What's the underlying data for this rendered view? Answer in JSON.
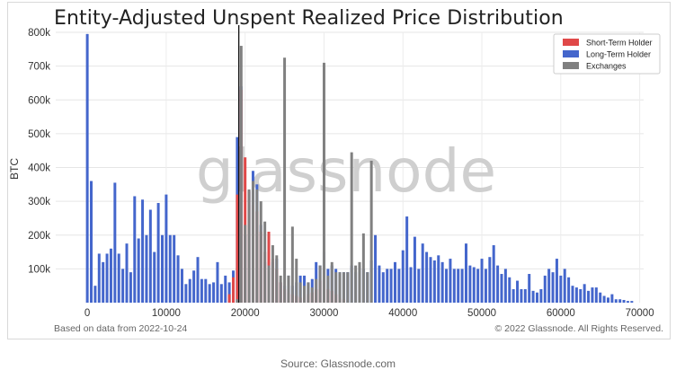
{
  "chart_data": {
    "type": "bar",
    "title": "Entity-Adjusted Unspent Realized Price Distribution",
    "ylabel": "BTC",
    "xlabel": "",
    "xlim": [
      -4000,
      70500
    ],
    "ylim": [
      0,
      800000
    ],
    "xticks": [
      0,
      10000,
      20000,
      30000,
      40000,
      50000,
      60000,
      70000
    ],
    "yticks": [
      100000,
      200000,
      300000,
      400000,
      500000,
      600000,
      700000,
      800000
    ],
    "ytick_labels": [
      "100k",
      "200k",
      "300k",
      "400k",
      "500k",
      "600k",
      "700k",
      "800k"
    ],
    "bin_width": 500,
    "grid": true,
    "legend_position": "top-right",
    "watermark": "glassnode",
    "vline_x": 19200,
    "series": [
      {
        "name": "Long-Term Holder",
        "color": "#4466cc",
        "values": [
          [
            0,
            795000
          ],
          [
            500,
            360000
          ],
          [
            1000,
            50000
          ],
          [
            1500,
            145000
          ],
          [
            2000,
            120000
          ],
          [
            2500,
            145000
          ],
          [
            3000,
            160000
          ],
          [
            3500,
            355000
          ],
          [
            4000,
            145000
          ],
          [
            4500,
            100000
          ],
          [
            5000,
            175000
          ],
          [
            5500,
            90000
          ],
          [
            6000,
            315000
          ],
          [
            6500,
            190000
          ],
          [
            7000,
            305000
          ],
          [
            7500,
            200000
          ],
          [
            8000,
            275000
          ],
          [
            8500,
            150000
          ],
          [
            9000,
            295000
          ],
          [
            9500,
            200000
          ],
          [
            10000,
            320000
          ],
          [
            10500,
            200000
          ],
          [
            11000,
            200000
          ],
          [
            11500,
            140000
          ],
          [
            12000,
            100000
          ],
          [
            12500,
            55000
          ],
          [
            13000,
            70000
          ],
          [
            13500,
            95000
          ],
          [
            14000,
            135000
          ],
          [
            14500,
            70000
          ],
          [
            15000,
            70000
          ],
          [
            15500,
            55000
          ],
          [
            16000,
            60000
          ],
          [
            16500,
            120000
          ],
          [
            17000,
            55000
          ],
          [
            17500,
            80000
          ],
          [
            18000,
            60000
          ],
          [
            18500,
            95000
          ],
          [
            19000,
            490000
          ],
          [
            19500,
            640000
          ],
          [
            20000,
            200000
          ],
          [
            20500,
            330000
          ],
          [
            21000,
            390000
          ],
          [
            21500,
            350000
          ],
          [
            22000,
            230000
          ],
          [
            22500,
            120000
          ],
          [
            23000,
            200000
          ],
          [
            23500,
            120000
          ],
          [
            24000,
            130000
          ],
          [
            24500,
            60000
          ],
          [
            25000,
            50000
          ],
          [
            25500,
            80000
          ],
          [
            26000,
            50000
          ],
          [
            26500,
            60000
          ],
          [
            27000,
            80000
          ],
          [
            27500,
            80000
          ],
          [
            28000,
            60000
          ],
          [
            28500,
            70000
          ],
          [
            29000,
            120000
          ],
          [
            29500,
            110000
          ],
          [
            30000,
            150000
          ],
          [
            30500,
            100000
          ],
          [
            31000,
            110000
          ],
          [
            31500,
            100000
          ],
          [
            32000,
            90000
          ],
          [
            32500,
            90000
          ],
          [
            33000,
            90000
          ],
          [
            33500,
            110000
          ],
          [
            34000,
            90000
          ],
          [
            34500,
            110000
          ],
          [
            35000,
            100000
          ],
          [
            35500,
            90000
          ],
          [
            36000,
            125000
          ],
          [
            36500,
            200000
          ],
          [
            37000,
            110000
          ],
          [
            37500,
            90000
          ],
          [
            38000,
            100000
          ],
          [
            38500,
            100000
          ],
          [
            39000,
            120000
          ],
          [
            39500,
            100000
          ],
          [
            40000,
            155000
          ],
          [
            40500,
            255000
          ],
          [
            41000,
            105000
          ],
          [
            41500,
            195000
          ],
          [
            42000,
            100000
          ],
          [
            42500,
            175000
          ],
          [
            43000,
            150000
          ],
          [
            43500,
            135000
          ],
          [
            44000,
            125000
          ],
          [
            44500,
            140000
          ],
          [
            45000,
            120000
          ],
          [
            45500,
            100000
          ],
          [
            46000,
            130000
          ],
          [
            46500,
            100000
          ],
          [
            47000,
            100000
          ],
          [
            47500,
            100000
          ],
          [
            48000,
            175000
          ],
          [
            48500,
            110000
          ],
          [
            49000,
            105000
          ],
          [
            49500,
            100000
          ],
          [
            50000,
            130000
          ],
          [
            50500,
            100000
          ],
          [
            51000,
            135000
          ],
          [
            51500,
            170000
          ],
          [
            52000,
            110000
          ],
          [
            52500,
            85000
          ],
          [
            53000,
            100000
          ],
          [
            53500,
            75000
          ],
          [
            54000,
            40000
          ],
          [
            54500,
            65000
          ],
          [
            55000,
            40000
          ],
          [
            55500,
            40000
          ],
          [
            56000,
            85000
          ],
          [
            56500,
            35000
          ],
          [
            57000,
            30000
          ],
          [
            57500,
            40000
          ],
          [
            58000,
            80000
          ],
          [
            58500,
            100000
          ],
          [
            59000,
            90000
          ],
          [
            59500,
            130000
          ],
          [
            60000,
            80000
          ],
          [
            60500,
            100000
          ],
          [
            61000,
            75000
          ],
          [
            61500,
            50000
          ],
          [
            62000,
            45000
          ],
          [
            62500,
            40000
          ],
          [
            63000,
            55000
          ],
          [
            63500,
            35000
          ],
          [
            64000,
            45000
          ],
          [
            64500,
            45000
          ],
          [
            65000,
            30000
          ],
          [
            65500,
            20000
          ],
          [
            66000,
            15000
          ],
          [
            66500,
            25000
          ],
          [
            67000,
            10000
          ],
          [
            67500,
            10000
          ],
          [
            68000,
            8000
          ],
          [
            68500,
            5000
          ],
          [
            69000,
            5000
          ]
        ]
      },
      {
        "name": "Short-Term Holder",
        "color": "#e04848",
        "values": [
          [
            18000,
            25000
          ],
          [
            18500,
            75000
          ],
          [
            19000,
            320000
          ],
          [
            19500,
            630000
          ],
          [
            20000,
            430000
          ],
          [
            20500,
            330000
          ],
          [
            21000,
            290000
          ],
          [
            21500,
            270000
          ],
          [
            22000,
            210000
          ],
          [
            22500,
            150000
          ],
          [
            23000,
            210000
          ],
          [
            23500,
            130000
          ],
          [
            24000,
            100000
          ],
          [
            24500,
            60000
          ],
          [
            25000,
            40000
          ],
          [
            25500,
            30000
          ],
          [
            26000,
            25000
          ],
          [
            26500,
            20000
          ],
          [
            27000,
            15000
          ],
          [
            27500,
            20000
          ],
          [
            28000,
            25000
          ],
          [
            28500,
            30000
          ],
          [
            29000,
            40000
          ],
          [
            29500,
            65000
          ],
          [
            30000,
            70000
          ],
          [
            30500,
            40000
          ],
          [
            31000,
            35000
          ],
          [
            31500,
            25000
          ],
          [
            32000,
            15000
          ],
          [
            32500,
            10000
          ]
        ]
      },
      {
        "name": "Exchanges",
        "color": "#808080",
        "values": [
          [
            19000,
            10000
          ],
          [
            19500,
            760000
          ],
          [
            20000,
            230000
          ],
          [
            20500,
            335000
          ],
          [
            21000,
            360000
          ],
          [
            21500,
            335000
          ],
          [
            22000,
            300000
          ],
          [
            22500,
            240000
          ],
          [
            23000,
            110000
          ],
          [
            23500,
            170000
          ],
          [
            24000,
            140000
          ],
          [
            24500,
            80000
          ],
          [
            25000,
            725000
          ],
          [
            25500,
            80000
          ],
          [
            26000,
            225000
          ],
          [
            26500,
            130000
          ],
          [
            27000,
            60000
          ],
          [
            27500,
            50000
          ],
          [
            28000,
            60000
          ],
          [
            28500,
            45000
          ],
          [
            29000,
            70000
          ],
          [
            29500,
            110000
          ],
          [
            30000,
            710000
          ],
          [
            30500,
            80000
          ],
          [
            31000,
            120000
          ],
          [
            31500,
            90000
          ],
          [
            32000,
            90000
          ],
          [
            32500,
            90000
          ],
          [
            33000,
            90000
          ],
          [
            33500,
            445000
          ],
          [
            34000,
            110000
          ],
          [
            34500,
            120000
          ],
          [
            35000,
            205000
          ],
          [
            35500,
            90000
          ],
          [
            36000,
            420000
          ]
        ]
      }
    ]
  },
  "legend_items": [
    "Short-Term Holder",
    "Long-Term Holder",
    "Exchanges"
  ],
  "footer": {
    "data_date": "Based on data from 2022-10-24",
    "copyright": "© 2022 Glassnode. All Rights Reserved."
  },
  "source": "Source: Glassnode.com"
}
